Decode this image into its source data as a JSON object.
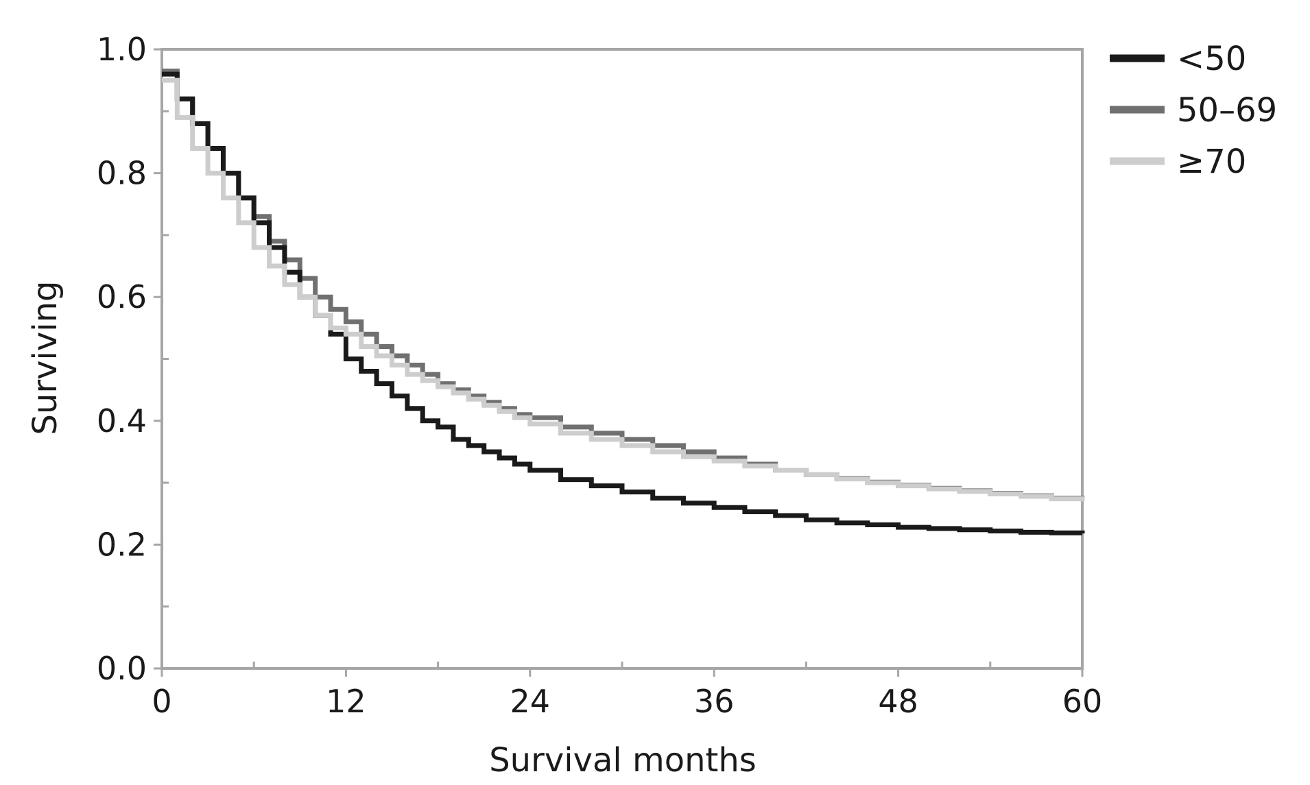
{
  "chart_data": {
    "type": "line",
    "step": true,
    "title": "",
    "xlabel": "Survival months",
    "ylabel": "Surviving",
    "xlim": [
      0,
      60
    ],
    "ylim": [
      0.0,
      1.0
    ],
    "x_ticks": [
      0,
      12,
      24,
      36,
      48,
      60
    ],
    "x_tick_labels": [
      "0",
      "12",
      "24",
      "36",
      "48",
      "60"
    ],
    "y_ticks": [
      0.0,
      0.2,
      0.4,
      0.6,
      0.8,
      1.0
    ],
    "y_tick_labels": [
      "0.0",
      "0.2",
      "0.4",
      "0.6",
      "0.8",
      "1.0"
    ],
    "grid": false,
    "legend_position": "top-right, outside plot",
    "series": [
      {
        "name": "<50",
        "color": "#1a1a1a",
        "x": [
          0,
          1,
          2,
          3,
          4,
          5,
          6,
          7,
          8,
          9,
          10,
          11,
          12,
          13,
          14,
          15,
          16,
          17,
          18,
          19,
          20,
          21,
          22,
          23,
          24,
          26,
          28,
          30,
          32,
          34,
          36,
          38,
          40,
          42,
          44,
          46,
          48,
          50,
          52,
          54,
          56,
          58,
          60
        ],
        "y": [
          0.96,
          0.92,
          0.88,
          0.84,
          0.8,
          0.76,
          0.72,
          0.68,
          0.64,
          0.6,
          0.57,
          0.54,
          0.5,
          0.48,
          0.46,
          0.44,
          0.42,
          0.4,
          0.39,
          0.37,
          0.36,
          0.35,
          0.34,
          0.33,
          0.32,
          0.305,
          0.295,
          0.285,
          0.275,
          0.267,
          0.26,
          0.253,
          0.247,
          0.24,
          0.235,
          0.232,
          0.228,
          0.226,
          0.224,
          0.222,
          0.22,
          0.219,
          0.218
        ]
      },
      {
        "name": "50–69",
        "color": "#707070",
        "x": [
          0,
          1,
          2,
          3,
          4,
          5,
          6,
          7,
          8,
          9,
          10,
          11,
          12,
          13,
          14,
          15,
          16,
          17,
          18,
          19,
          20,
          21,
          22,
          23,
          24,
          26,
          28,
          30,
          32,
          34,
          36,
          38,
          40,
          42,
          44,
          46,
          48,
          50,
          52,
          54,
          56,
          58,
          60
        ],
        "y": [
          0.965,
          0.92,
          0.88,
          0.84,
          0.8,
          0.76,
          0.73,
          0.69,
          0.66,
          0.63,
          0.6,
          0.58,
          0.56,
          0.54,
          0.52,
          0.505,
          0.49,
          0.475,
          0.46,
          0.45,
          0.44,
          0.43,
          0.42,
          0.41,
          0.405,
          0.39,
          0.38,
          0.37,
          0.36,
          0.35,
          0.34,
          0.33,
          0.32,
          0.313,
          0.307,
          0.301,
          0.296,
          0.291,
          0.287,
          0.283,
          0.279,
          0.275,
          0.272
        ]
      },
      {
        "name": "≥70",
        "color": "#cdcdcd",
        "x": [
          0,
          1,
          2,
          3,
          4,
          5,
          6,
          7,
          8,
          9,
          10,
          11,
          12,
          13,
          14,
          15,
          16,
          17,
          18,
          19,
          20,
          21,
          22,
          23,
          24,
          26,
          28,
          30,
          32,
          34,
          36,
          38,
          40,
          42,
          44,
          46,
          48,
          50,
          52,
          54,
          56,
          58,
          60
        ],
        "y": [
          0.95,
          0.89,
          0.84,
          0.8,
          0.76,
          0.72,
          0.68,
          0.65,
          0.62,
          0.6,
          0.57,
          0.55,
          0.54,
          0.52,
          0.505,
          0.49,
          0.475,
          0.465,
          0.455,
          0.445,
          0.435,
          0.425,
          0.415,
          0.405,
          0.395,
          0.38,
          0.37,
          0.36,
          0.35,
          0.342,
          0.335,
          0.327,
          0.32,
          0.313,
          0.306,
          0.3,
          0.295,
          0.29,
          0.286,
          0.282,
          0.278,
          0.274,
          0.27
        ]
      }
    ]
  }
}
